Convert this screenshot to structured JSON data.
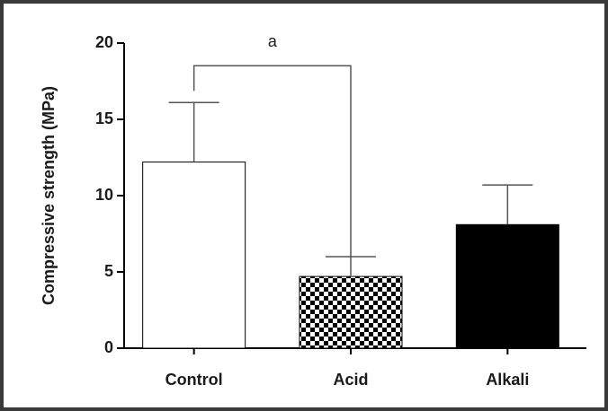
{
  "chart_data": {
    "type": "bar",
    "y_label": "Compressive strength (MPa)",
    "categories": [
      "Control",
      "Acid",
      "Alkali"
    ],
    "values": [
      12.2,
      4.7,
      8.1
    ],
    "errors": [
      3.9,
      1.3,
      2.6
    ],
    "fills": [
      "#ffffff",
      "checkerboard",
      "#000000"
    ],
    "ylim": [
      0,
      20
    ],
    "yticks": [
      0,
      5,
      10,
      15,
      20
    ],
    "annotation": {
      "text": "a",
      "from": 0,
      "to": 1
    }
  }
}
